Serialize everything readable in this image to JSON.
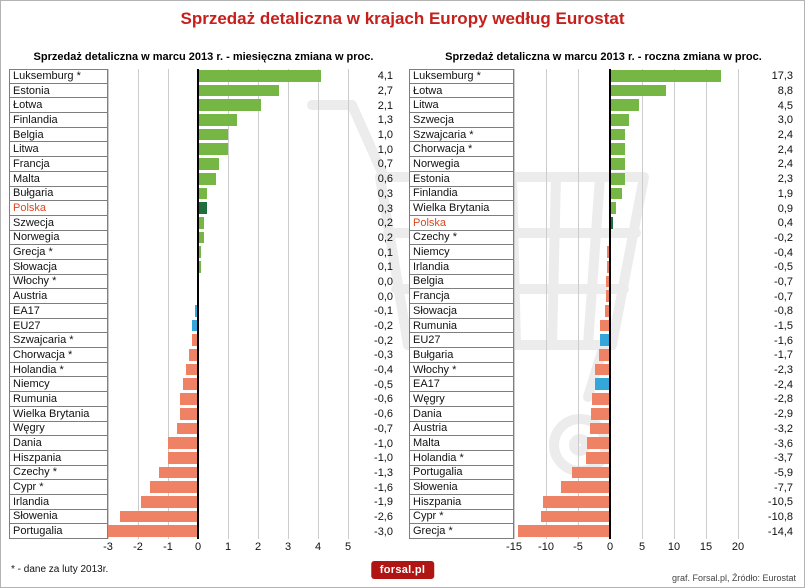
{
  "title": "Sprzedaż detaliczna w krajach Europy według Eurostat",
  "footnote": "* - dane za luty 2013r.",
  "credit": "graf. Forsal.pl, Źródło: Eurostat",
  "logo_text": "forsal.pl",
  "colors": {
    "pos": "#76b645",
    "neg": "#ef8165",
    "pl": "#1e6f3c",
    "eu": "#35a6d9",
    "title": "#c5201c",
    "poland_label": "#d9481f"
  },
  "chart_data": [
    {
      "type": "bar",
      "title": "Sprzedaż detaliczna w marcu 2013 r. - miesięczna zmiana w proc.",
      "xlabel": "",
      "ylabel": "",
      "xlim": [
        -3,
        5
      ],
      "ticks": [
        -3,
        -2,
        -1,
        0,
        1,
        2,
        3,
        4,
        5
      ],
      "rows": [
        {
          "label": "Luksemburg *",
          "value": 4.1,
          "display": "4,1",
          "c": "pos"
        },
        {
          "label": "Estonia",
          "value": 2.7,
          "display": "2,7",
          "c": "pos"
        },
        {
          "label": "Łotwa",
          "value": 2.1,
          "display": "2,1",
          "c": "pos"
        },
        {
          "label": "Finlandia",
          "value": 1.3,
          "display": "1,3",
          "c": "pos"
        },
        {
          "label": "Belgia",
          "value": 1.0,
          "display": "1,0",
          "c": "pos"
        },
        {
          "label": "Litwa",
          "value": 1.0,
          "display": "1,0",
          "c": "pos"
        },
        {
          "label": "Francja",
          "value": 0.7,
          "display": "0,7",
          "c": "pos"
        },
        {
          "label": "Malta",
          "value": 0.6,
          "display": "0,6",
          "c": "pos"
        },
        {
          "label": "Bułgaria",
          "value": 0.3,
          "display": "0,3",
          "c": "pos"
        },
        {
          "label": "Polska",
          "value": 0.3,
          "display": "0,3",
          "c": "pl"
        },
        {
          "label": "Szwecja",
          "value": 0.2,
          "display": "0,2",
          "c": "pos"
        },
        {
          "label": "Norwegia",
          "value": 0.2,
          "display": "0,2",
          "c": "pos"
        },
        {
          "label": "Grecja *",
          "value": 0.1,
          "display": "0,1",
          "c": "pos"
        },
        {
          "label": "Słowacja",
          "value": 0.1,
          "display": "0,1",
          "c": "pos"
        },
        {
          "label": "Włochy *",
          "value": 0.0,
          "display": "0,0",
          "c": "pos"
        },
        {
          "label": "Austria",
          "value": 0.0,
          "display": "0,0",
          "c": "pos"
        },
        {
          "label": "EA17",
          "value": -0.1,
          "display": "-0,1",
          "c": "eu"
        },
        {
          "label": "EU27",
          "value": -0.2,
          "display": "-0,2",
          "c": "eu"
        },
        {
          "label": "Szwajcaria *",
          "value": -0.2,
          "display": "-0,2",
          "c": "neg"
        },
        {
          "label": "Chorwacja *",
          "value": -0.3,
          "display": "-0,3",
          "c": "neg"
        },
        {
          "label": "Holandia *",
          "value": -0.4,
          "display": "-0,4",
          "c": "neg"
        },
        {
          "label": "Niemcy",
          "value": -0.5,
          "display": "-0,5",
          "c": "neg"
        },
        {
          "label": "Rumunia",
          "value": -0.6,
          "display": "-0,6",
          "c": "neg"
        },
        {
          "label": "Wielka Brytania",
          "value": -0.6,
          "display": "-0,6",
          "c": "neg"
        },
        {
          "label": "Węgry",
          "value": -0.7,
          "display": "-0,7",
          "c": "neg"
        },
        {
          "label": "Dania",
          "value": -1.0,
          "display": "-1,0",
          "c": "neg"
        },
        {
          "label": "Hiszpania",
          "value": -1.0,
          "display": "-1,0",
          "c": "neg"
        },
        {
          "label": "Czechy *",
          "value": -1.3,
          "display": "-1,3",
          "c": "neg"
        },
        {
          "label": "Cypr *",
          "value": -1.6,
          "display": "-1,6",
          "c": "neg"
        },
        {
          "label": "Irlandia",
          "value": -1.9,
          "display": "-1,9",
          "c": "neg"
        },
        {
          "label": "Słowenia",
          "value": -2.6,
          "display": "-2,6",
          "c": "neg"
        },
        {
          "label": "Portugalia",
          "value": -3.0,
          "display": "-3,0",
          "c": "neg"
        }
      ]
    },
    {
      "type": "bar",
      "title": "Sprzedaż detaliczna w marcu 2013 r. - roczna zmiana w proc.",
      "xlabel": "",
      "ylabel": "",
      "xlim": [
        -15,
        20
      ],
      "ticks": [
        -15,
        -10,
        -5,
        0,
        5,
        10,
        15,
        20
      ],
      "rows": [
        {
          "label": "Luksemburg *",
          "value": 17.3,
          "display": "17,3",
          "c": "pos"
        },
        {
          "label": "Łotwa",
          "value": 8.8,
          "display": "8,8",
          "c": "pos"
        },
        {
          "label": "Litwa",
          "value": 4.5,
          "display": "4,5",
          "c": "pos"
        },
        {
          "label": "Szwecja",
          "value": 3.0,
          "display": "3,0",
          "c": "pos"
        },
        {
          "label": "Szwajcaria *",
          "value": 2.4,
          "display": "2,4",
          "c": "pos"
        },
        {
          "label": "Chorwacja *",
          "value": 2.4,
          "display": "2,4",
          "c": "pos"
        },
        {
          "label": "Norwegia",
          "value": 2.4,
          "display": "2,4",
          "c": "pos"
        },
        {
          "label": "Estonia",
          "value": 2.3,
          "display": "2,3",
          "c": "pos"
        },
        {
          "label": "Finlandia",
          "value": 1.9,
          "display": "1,9",
          "c": "pos"
        },
        {
          "label": "Wielka Brytania",
          "value": 0.9,
          "display": "0,9",
          "c": "pos"
        },
        {
          "label": "Polska",
          "value": 0.4,
          "display": "0,4",
          "c": "pl"
        },
        {
          "label": "Czechy *",
          "value": -0.2,
          "display": "-0,2",
          "c": "neg"
        },
        {
          "label": "Niemcy",
          "value": -0.4,
          "display": "-0,4",
          "c": "neg"
        },
        {
          "label": "Irlandia",
          "value": -0.5,
          "display": "-0,5",
          "c": "neg"
        },
        {
          "label": "Belgia",
          "value": -0.7,
          "display": "-0,7",
          "c": "neg"
        },
        {
          "label": "Francja",
          "value": -0.7,
          "display": "-0,7",
          "c": "neg"
        },
        {
          "label": "Słowacja",
          "value": -0.8,
          "display": "-0,8",
          "c": "neg"
        },
        {
          "label": "Rumunia",
          "value": -1.5,
          "display": "-1,5",
          "c": "neg"
        },
        {
          "label": "EU27",
          "value": -1.6,
          "display": "-1,6",
          "c": "eu"
        },
        {
          "label": "Bułgaria",
          "value": -1.7,
          "display": "-1,7",
          "c": "neg"
        },
        {
          "label": "Włochy *",
          "value": -2.3,
          "display": "-2,3",
          "c": "neg"
        },
        {
          "label": "EA17",
          "value": -2.4,
          "display": "-2,4",
          "c": "eu"
        },
        {
          "label": "Węgry",
          "value": -2.8,
          "display": "-2,8",
          "c": "neg"
        },
        {
          "label": "Dania",
          "value": -2.9,
          "display": "-2,9",
          "c": "neg"
        },
        {
          "label": "Austria",
          "value": -3.2,
          "display": "-3,2",
          "c": "neg"
        },
        {
          "label": "Malta",
          "value": -3.6,
          "display": "-3,6",
          "c": "neg"
        },
        {
          "label": "Holandia *",
          "value": -3.7,
          "display": "-3,7",
          "c": "neg"
        },
        {
          "label": "Portugalia",
          "value": -5.9,
          "display": "-5,9",
          "c": "neg"
        },
        {
          "label": "Słowenia",
          "value": -7.7,
          "display": "-7,7",
          "c": "neg"
        },
        {
          "label": "Hiszpania",
          "value": -10.5,
          "display": "-10,5",
          "c": "neg"
        },
        {
          "label": "Cypr *",
          "value": -10.8,
          "display": "-10,8",
          "c": "neg"
        },
        {
          "label": "Grecja *",
          "value": -14.4,
          "display": "-14,4",
          "c": "neg"
        }
      ]
    }
  ]
}
